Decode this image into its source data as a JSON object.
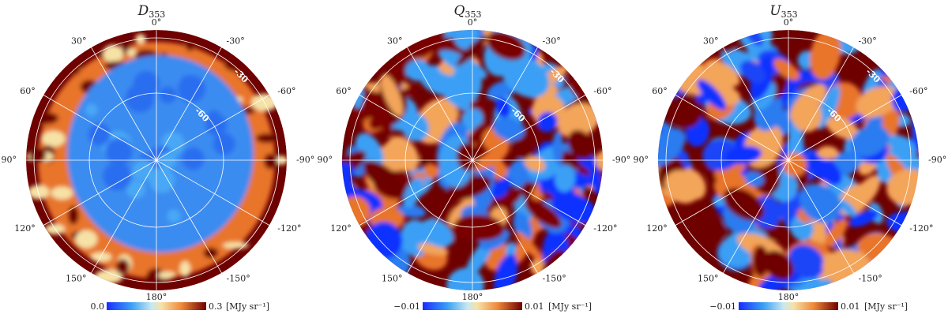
{
  "panels": [
    {
      "title": "D",
      "subscript": "353",
      "min_label": "0.0",
      "max_label": "0.3",
      "unit": "[MJy sr⁻¹]"
    },
    {
      "title": "Q",
      "subscript": "353",
      "min_label": "−0.01",
      "max_label": "0.01",
      "unit": "[MJy sr⁻¹]"
    },
    {
      "title": "U",
      "subscript": "353",
      "min_label": "−0.01",
      "max_label": "0.01",
      "unit": "[MJy sr⁻¹]"
    }
  ],
  "longitude_labels": [
    "0°",
    "-30°",
    "-60°",
    "-90°",
    "-120°",
    "-150°",
    "180°",
    "150°",
    "120°",
    "90°",
    "60°",
    "30°"
  ],
  "latitude_labels": [
    "-30",
    "-60"
  ]
}
